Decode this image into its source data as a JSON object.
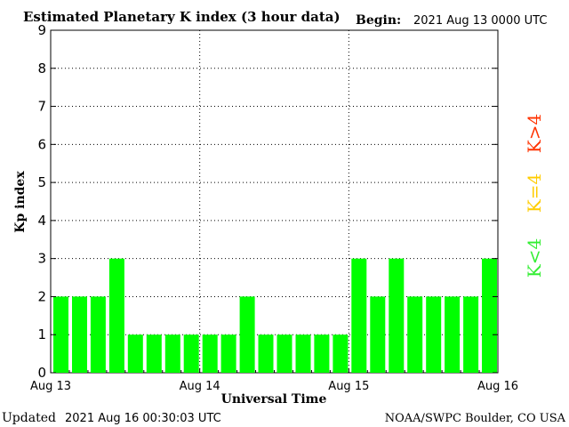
{
  "chart_data": {
    "type": "bar",
    "title": "Estimated Planetary K index (3 hour data)",
    "begin_label": "Begin:",
    "begin_value": "2021 Aug 13 0000 UTC",
    "xlabel": "Universal Time",
    "ylabel": "Kp index",
    "ylim": [
      0,
      9
    ],
    "y_ticks": [
      "0",
      "1",
      "2",
      "3",
      "4",
      "5",
      "6",
      "7",
      "8",
      "9"
    ],
    "x_tick_labels": [
      "Aug 13",
      "Aug 14",
      "Aug 15",
      "Aug 16"
    ],
    "values": [
      2,
      2,
      2,
      3,
      1,
      1,
      1,
      1,
      1,
      1,
      2,
      1,
      1,
      1,
      1,
      1,
      3,
      2,
      3,
      2,
      2,
      2,
      2,
      3
    ],
    "bar_color": "#00ff00",
    "grid": "dotted",
    "legend": [
      {
        "label": "K<4",
        "color": "#33ee33"
      },
      {
        "label": "K=4",
        "color": "#ffcc00"
      },
      {
        "label": "K>4",
        "color": "#ff3300"
      }
    ],
    "updated_label": "Updated",
    "updated_value": "2021 Aug 16 00:30:03 UTC",
    "credit": "NOAA/SWPC Boulder, CO USA"
  }
}
